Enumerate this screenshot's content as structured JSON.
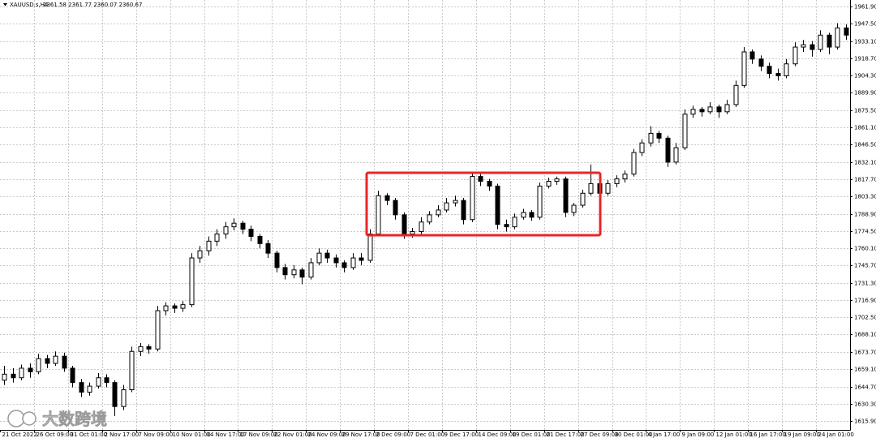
{
  "chart_data": {
    "type": "candlestick",
    "symbol": "XAUUSD.s,H4",
    "quote": "2361.58 2361.77 2360.07 2360.67",
    "watermark": "大数跨境",
    "up_color": "#ffffff",
    "down_color": "#000000",
    "grid": true,
    "ylim": [
      1608.5,
      1967.3
    ],
    "yticks": [
      {
        "value": 1961.9,
        "label": "1961.90"
      },
      {
        "value": 1947.5,
        "label": "1947.50"
      },
      {
        "value": 1933.1,
        "label": "1933.10"
      },
      {
        "value": 1918.7,
        "label": "1918.70"
      },
      {
        "value": 1904.3,
        "label": "1904.30"
      },
      {
        "value": 1889.9,
        "label": "1889.90"
      },
      {
        "value": 1875.5,
        "label": "1875.50"
      },
      {
        "value": 1861.1,
        "label": "1861.10"
      },
      {
        "value": 1846.5,
        "label": "1846.50"
      },
      {
        "value": 1832.1,
        "label": "1832.10"
      },
      {
        "value": 1817.7,
        "label": "1817.70"
      },
      {
        "value": 1803.3,
        "label": "1803.30"
      },
      {
        "value": 1788.9,
        "label": "1788.90"
      },
      {
        "value": 1774.5,
        "label": "1774.50"
      },
      {
        "value": 1760.1,
        "label": "1760.10"
      },
      {
        "value": 1745.7,
        "label": "1745.70"
      },
      {
        "value": 1731.3,
        "label": "1731.30"
      },
      {
        "value": 1716.9,
        "label": "1716.90"
      },
      {
        "value": 1702.5,
        "label": "1702.50"
      },
      {
        "value": 1688.1,
        "label": "1688.10"
      },
      {
        "value": 1673.7,
        "label": "1673.70"
      },
      {
        "value": 1659.1,
        "label": "1659.10"
      },
      {
        "value": 1644.7,
        "label": "1644.70"
      },
      {
        "value": 1630.3,
        "label": "1630.30"
      },
      {
        "value": 1615.9,
        "label": "1615.90"
      }
    ],
    "categories": [
      "21 Oct 2022",
      null,
      null,
      null,
      "26 Oct 09:00",
      null,
      null,
      null,
      "31 Oct 01:00",
      null,
      null,
      null,
      "2 Nov 17:00",
      null,
      null,
      null,
      "7 Nov 09:00",
      null,
      null,
      null,
      "10 Nov 01:00",
      null,
      null,
      null,
      "14 Nov 17:00",
      null,
      null,
      null,
      "17 Nov 09:00",
      null,
      null,
      null,
      "22 Nov 01:00",
      null,
      null,
      null,
      "24 Nov 09:00",
      null,
      null,
      null,
      "29 Nov 17:00",
      null,
      null,
      null,
      "2 Dec 09:00",
      null,
      null,
      null,
      "7 Dec 01:00",
      null,
      null,
      null,
      "9 Dec 17:00",
      null,
      null,
      null,
      "14 Dec 09:00",
      null,
      null,
      null,
      "19 Dec 01:00",
      null,
      null,
      null,
      "21 Dec 17:00",
      null,
      null,
      null,
      "27 Dec 09:00",
      null,
      null,
      null,
      "30 Dec 01:00",
      null,
      null,
      null,
      "4 Jan 17:00",
      null,
      null,
      null,
      "9 Jan 09:00",
      null,
      null,
      null,
      "12 Jan 01:00",
      null,
      null,
      null,
      "16 Jan 17:00",
      null,
      null,
      null,
      "19 Jan 09:00",
      null,
      null,
      null,
      "24 Jan 01:00",
      null,
      null,
      null
    ],
    "open": [
      1650,
      1655,
      1652,
      1660,
      1657,
      1668,
      1664,
      1670,
      1660,
      1648,
      1640,
      1645,
      1652,
      1648,
      1628,
      1642,
      1674,
      1678,
      1676,
      1708,
      1712,
      1710,
      1713,
      1752,
      1758,
      1766,
      1772,
      1778,
      1781,
      1776,
      1770,
      1764,
      1756,
      1744,
      1738,
      1742,
      1736,
      1748,
      1756,
      1752,
      1748,
      1744,
      1752,
      1750,
      1772,
      1804,
      1800,
      1788,
      1772,
      1774,
      1782,
      1788,
      1792,
      1798,
      1800,
      1784,
      1820,
      1816,
      1812,
      1780,
      1778,
      1786,
      1790,
      1786,
      1812,
      1816,
      1818,
      1790,
      1796,
      1806,
      1814,
      1806,
      1814,
      1818,
      1822,
      1840,
      1848,
      1856,
      1852,
      1832,
      1844,
      1872,
      1876,
      1874,
      1878,
      1874,
      1880,
      1896,
      1924,
      1918,
      1912,
      1906,
      1904,
      1914,
      1928,
      1930,
      1926,
      1938,
      1928,
      1944
    ],
    "high": [
      1662,
      1660,
      1663,
      1664,
      1672,
      1671,
      1674,
      1673,
      1662,
      1651,
      1648,
      1656,
      1655,
      1650,
      1646,
      1678,
      1681,
      1680,
      1712,
      1715,
      1714,
      1716,
      1756,
      1762,
      1770,
      1776,
      1782,
      1785,
      1783,
      1779,
      1772,
      1767,
      1758,
      1747,
      1746,
      1744,
      1752,
      1760,
      1759,
      1755,
      1750,
      1756,
      1756,
      1776,
      1808,
      1806,
      1802,
      1790,
      1777,
      1786,
      1791,
      1796,
      1802,
      1804,
      1802,
      1824,
      1822,
      1818,
      1814,
      1784,
      1789,
      1793,
      1792,
      1815,
      1819,
      1820,
      1820,
      1798,
      1809,
      1830,
      1816,
      1817,
      1821,
      1825,
      1843,
      1851,
      1862,
      1858,
      1854,
      1848,
      1876,
      1879,
      1878,
      1882,
      1880,
      1884,
      1900,
      1928,
      1926,
      1921,
      1915,
      1910,
      1918,
      1932,
      1934,
      1933,
      1942,
      1940,
      1948,
      1947
    ],
    "low": [
      1646,
      1648,
      1650,
      1652,
      1655,
      1660,
      1662,
      1657,
      1644,
      1636,
      1637,
      1643,
      1644,
      1620,
      1625,
      1640,
      1670,
      1672,
      1674,
      1704,
      1706,
      1707,
      1711,
      1748,
      1754,
      1762,
      1768,
      1775,
      1772,
      1766,
      1760,
      1752,
      1740,
      1734,
      1735,
      1730,
      1734,
      1746,
      1748,
      1744,
      1740,
      1742,
      1746,
      1748,
      1770,
      1796,
      1784,
      1768,
      1769,
      1772,
      1780,
      1786,
      1790,
      1795,
      1780,
      1782,
      1812,
      1808,
      1776,
      1774,
      1776,
      1784,
      1783,
      1784,
      1810,
      1813,
      1786,
      1787,
      1794,
      1804,
      1803,
      1804,
      1811,
      1815,
      1820,
      1837,
      1845,
      1848,
      1828,
      1830,
      1842,
      1869,
      1870,
      1872,
      1869,
      1872,
      1878,
      1894,
      1914,
      1908,
      1902,
      1900,
      1902,
      1912,
      1924,
      1920,
      1924,
      1922,
      1926,
      1934
    ],
    "close": [
      1655,
      1652,
      1660,
      1657,
      1668,
      1664,
      1670,
      1660,
      1648,
      1640,
      1645,
      1652,
      1648,
      1628,
      1642,
      1674,
      1678,
      1676,
      1708,
      1712,
      1710,
      1713,
      1752,
      1758,
      1766,
      1772,
      1778,
      1781,
      1776,
      1770,
      1764,
      1756,
      1744,
      1738,
      1742,
      1736,
      1748,
      1756,
      1752,
      1748,
      1744,
      1752,
      1750,
      1772,
      1804,
      1800,
      1788,
      1772,
      1774,
      1782,
      1788,
      1792,
      1798,
      1800,
      1784,
      1820,
      1816,
      1812,
      1780,
      1778,
      1786,
      1790,
      1786,
      1812,
      1816,
      1818,
      1790,
      1796,
      1806,
      1814,
      1806,
      1814,
      1818,
      1822,
      1840,
      1848,
      1856,
      1852,
      1832,
      1844,
      1872,
      1876,
      1874,
      1878,
      1874,
      1880,
      1896,
      1924,
      1918,
      1912,
      1906,
      1904,
      1914,
      1928,
      1930,
      1926,
      1938,
      1928,
      1944,
      1938
    ]
  }
}
